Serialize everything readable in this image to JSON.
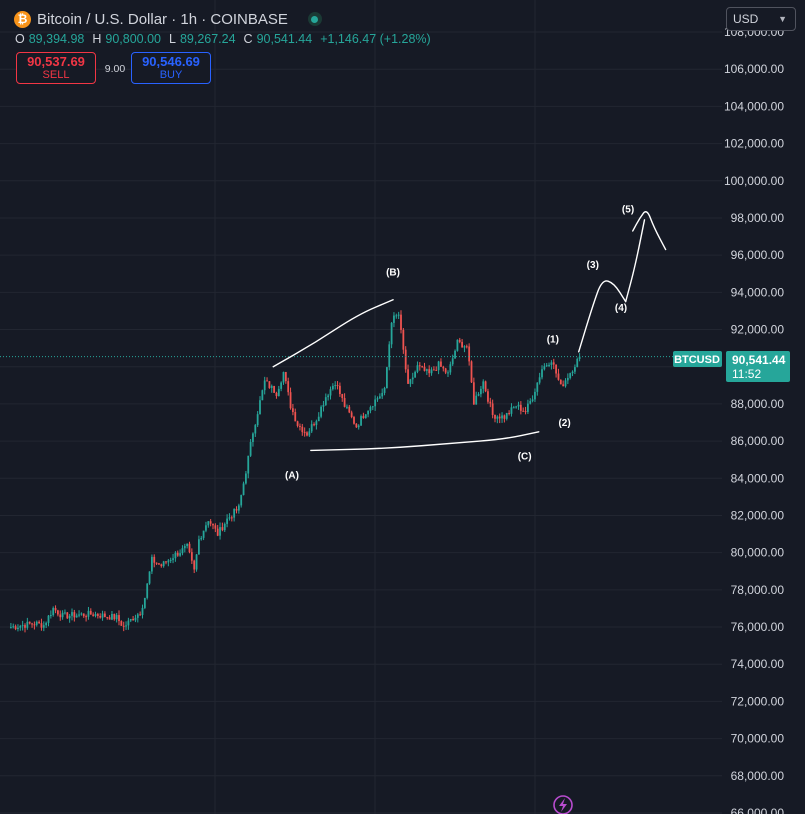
{
  "header": {
    "symbol_title": "Bitcoin / U.S. Dollar · 1h · COINBASE",
    "logo_glyph": "₿",
    "ohlc": {
      "o_key": "O",
      "o_val": "89,394.98",
      "h_key": "H",
      "h_val": "90,800.00",
      "l_key": "L",
      "l_val": "89,267.24",
      "c_key": "C",
      "c_val": "90,541.44",
      "change": "+1,146.47 (+1.28%)"
    }
  },
  "trade": {
    "sell_price": "90,537.69",
    "sell_label": "SELL",
    "spread": "9.00",
    "buy_price": "90,546.69",
    "buy_label": "BUY"
  },
  "currency": {
    "selected": "USD"
  },
  "price_tag": {
    "symbol": "BTCUSD",
    "price": "90,541.44",
    "countdown": "11:52"
  },
  "colors": {
    "background": "#161a25",
    "up": "#26a69a",
    "down": "#ef5350",
    "grid": "#222631",
    "annotation": "#ffffff"
  },
  "chart_data": {
    "type": "candlestick",
    "title": "Bitcoin / U.S. Dollar · 1h · COINBASE",
    "ylim": [
      66000,
      108000
    ],
    "y_ticks": [
      66000,
      68000,
      70000,
      72000,
      74000,
      76000,
      78000,
      80000,
      82000,
      84000,
      86000,
      88000,
      90000,
      92000,
      94000,
      96000,
      98000,
      100000,
      102000,
      104000,
      106000,
      108000
    ],
    "y_tick_labels": [
      "66,000.00",
      "68,000.00",
      "70,000.00",
      "72,000.00",
      "74,000.00",
      "76,000.00",
      "78,000.00",
      "80,000.00",
      "82,000.00",
      "84,000.00",
      "86,000.00",
      "88,000.00",
      "90,000.00",
      "92,000.00",
      "94,000.00",
      "96,000.00",
      "98,000.00",
      "100,000.00",
      "102,000.00",
      "104,000.00",
      "106,000.00",
      "108,000.00"
    ],
    "last_price": 90541.44,
    "close_path": [
      [
        0,
        76000
      ],
      [
        10,
        76200
      ],
      [
        14,
        76100
      ],
      [
        18,
        77000
      ],
      [
        22,
        76600
      ],
      [
        35,
        76700
      ],
      [
        45,
        76500
      ],
      [
        48,
        76000
      ],
      [
        52,
        76500
      ],
      [
        55,
        76800
      ],
      [
        57,
        77600
      ],
      [
        60,
        79600
      ],
      [
        64,
        79300
      ],
      [
        70,
        79900
      ],
      [
        75,
        80300
      ],
      [
        78,
        79000
      ],
      [
        80,
        80700
      ],
      [
        84,
        81800
      ],
      [
        88,
        81000
      ],
      [
        92,
        81800
      ],
      [
        97,
        82400
      ],
      [
        100,
        84400
      ],
      [
        103,
        86500
      ],
      [
        108,
        89200
      ],
      [
        113,
        88600
      ],
      [
        116,
        89700
      ],
      [
        119,
        87900
      ],
      [
        122,
        86900
      ],
      [
        126,
        86400
      ],
      [
        130,
        87200
      ],
      [
        134,
        88400
      ],
      [
        138,
        89200
      ],
      [
        142,
        87900
      ],
      [
        147,
        86800
      ],
      [
        151,
        87600
      ],
      [
        155,
        88200
      ],
      [
        159,
        88700
      ],
      [
        162,
        92500
      ],
      [
        165,
        92800
      ],
      [
        169,
        88900
      ],
      [
        173,
        90000
      ],
      [
        178,
        89600
      ],
      [
        182,
        90100
      ],
      [
        186,
        89600
      ],
      [
        190,
        91300
      ],
      [
        194,
        91100
      ],
      [
        197,
        88100
      ],
      [
        201,
        89200
      ],
      [
        205,
        87400
      ],
      [
        210,
        87300
      ],
      [
        215,
        87900
      ],
      [
        219,
        87600
      ],
      [
        222,
        88400
      ],
      [
        226,
        89900
      ],
      [
        230,
        90400
      ],
      [
        234,
        88900
      ],
      [
        238,
        89700
      ],
      [
        242,
        90541
      ]
    ],
    "wave_labels": [
      {
        "text": "(A)",
        "x": 120,
        "y": 84000
      },
      {
        "text": "(B)",
        "x": 163,
        "y": 94900
      },
      {
        "text": "(C)",
        "x": 219,
        "y": 85000
      },
      {
        "text": "(1)",
        "x": 231,
        "y": 91300
      },
      {
        "text": "(2)",
        "x": 236,
        "y": 86800
      },
      {
        "text": "(3)",
        "x": 248,
        "y": 95300
      },
      {
        "text": "(4)",
        "x": 260,
        "y": 93000
      },
      {
        "text": "(5)",
        "x": 263,
        "y": 98300
      }
    ],
    "drawings": [
      {
        "name": "upper-trendline",
        "points": [
          [
            112,
            90000
          ],
          [
            130,
            91300
          ],
          [
            148,
            92800
          ],
          [
            163,
            93600
          ]
        ]
      },
      {
        "name": "lower-trendline",
        "points": [
          [
            128,
            85500
          ],
          [
            160,
            85600
          ],
          [
            190,
            85900
          ],
          [
            210,
            86100
          ],
          [
            225,
            86500
          ]
        ]
      },
      {
        "name": "projected-path-3-4",
        "points": [
          [
            242,
            90800
          ],
          [
            248,
            93300
          ],
          [
            252,
            94700
          ],
          [
            257,
            94500
          ],
          [
            262,
            93500
          ]
        ]
      },
      {
        "name": "projected-path-4-5",
        "points": [
          [
            262,
            93500
          ],
          [
            266,
            95400
          ],
          [
            270,
            97900
          ]
        ]
      },
      {
        "name": "projected-path-5-end",
        "points": [
          [
            265,
            97300
          ],
          [
            268,
            98000
          ],
          [
            271,
            98500
          ],
          [
            274,
            97500
          ],
          [
            279,
            96300
          ]
        ]
      }
    ]
  }
}
